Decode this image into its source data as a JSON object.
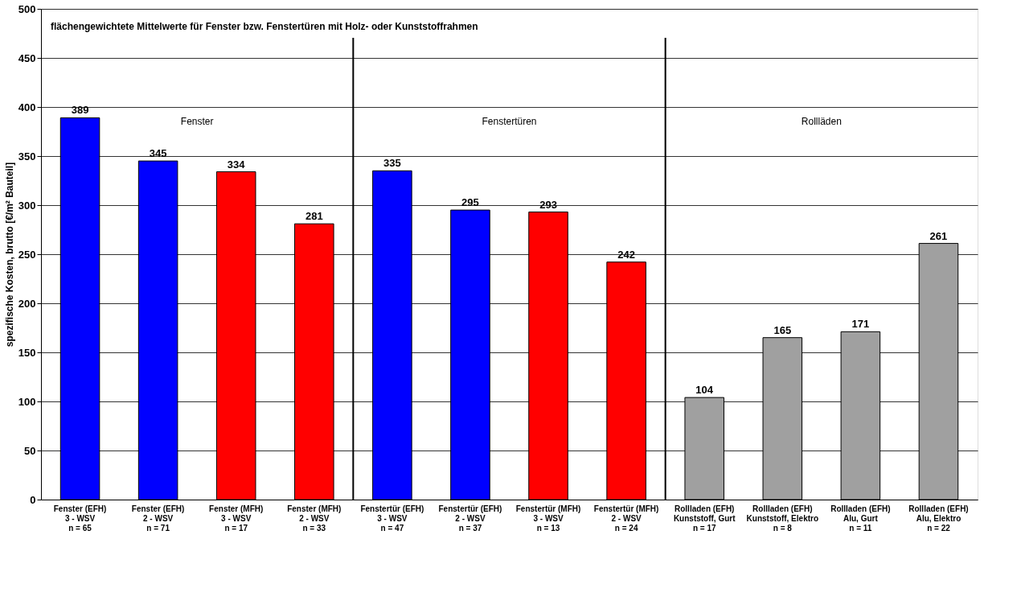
{
  "chart_data": {
    "type": "bar",
    "title": "flächengewichtete Mittelwerte für Fenster bzw. Fenstertüren mit Holz- oder Kunststoffrahmen",
    "ylabel": "spezifische Kosten, brutto [€/m² Bauteil]",
    "categories": [
      "Fenster (EFH)\n3 - WSV\nn = 65",
      "Fenster (EFH)\n2 - WSV\nn = 71",
      "Fenster (MFH)\n3 - WSV\nn = 17",
      "Fenster (MFH)\n2 - WSV\nn = 33",
      "Fenstertür (EFH)\n3 - WSV\nn = 47",
      "Fenstertür (EFH)\n2 - WSV\nn = 37",
      "Fenstertür (MFH)\n3 - WSV\nn = 13",
      "Fenstertür (MFH)\n2 - WSV\nn = 24",
      "Rollladen (EFH)\nKunststoff, Gurt\nn = 17",
      "Rollladen (EFH)\nKunststoff, Elektro\nn = 8",
      "Rollladen (EFH)\nAlu, Gurt\nn = 11",
      "Rollladen (EFH)\nAlu, Elektro\nn = 22"
    ],
    "values": [
      389,
      345,
      334,
      281,
      335,
      295,
      293,
      242,
      104,
      165,
      171,
      261
    ],
    "colors": [
      "#0000ff",
      "#0000ff",
      "#ff0000",
      "#ff0000",
      "#0000ff",
      "#0000ff",
      "#ff0000",
      "#ff0000",
      "#a0a0a0",
      "#a0a0a0",
      "#a0a0a0",
      "#a0a0a0"
    ],
    "ylim": [
      0,
      500
    ],
    "yticks": [
      0,
      50,
      100,
      150,
      200,
      250,
      300,
      350,
      400,
      450,
      500
    ],
    "grid": "y",
    "data_labels": true,
    "annotations": [
      "Fenster",
      "Fenstertüren",
      "Rollläden"
    ]
  }
}
